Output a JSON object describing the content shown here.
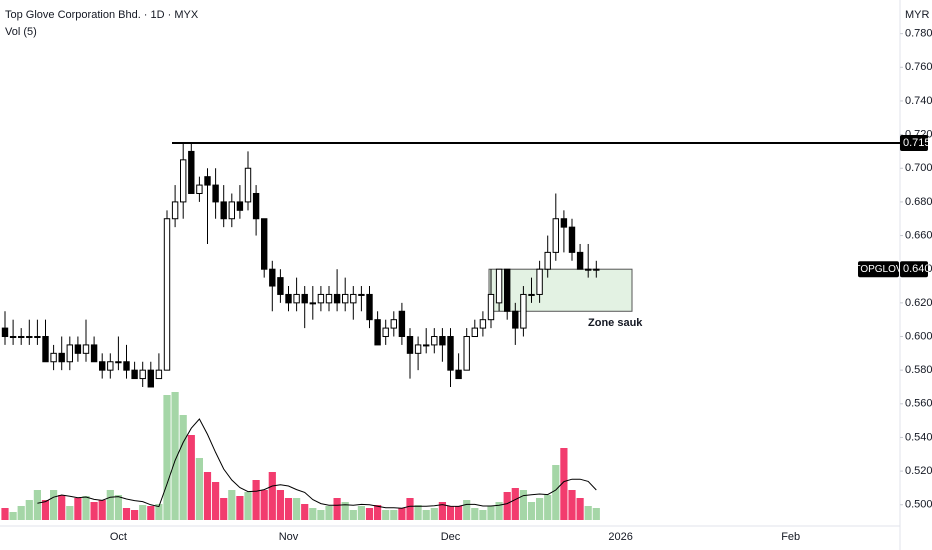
{
  "header": {
    "title": "Top Glove Corporation Bhd. · 1D · MYX",
    "indicator": "Vol (5)",
    "currency": "MYR"
  },
  "chart_data": {
    "type": "candlestick",
    "categories": [
      null,
      null,
      null,
      null,
      null,
      null,
      null,
      null,
      null,
      null,
      null,
      null,
      null,
      null,
      "Oct",
      null,
      null,
      null,
      null,
      null,
      null,
      null,
      null,
      null,
      null,
      null,
      null,
      null,
      null,
      null,
      null,
      null,
      null,
      null,
      null,
      "Nov",
      null,
      null,
      null,
      null,
      null,
      null,
      null,
      null,
      null,
      null,
      null,
      null,
      null,
      null,
      null,
      null,
      null,
      null,
      null,
      "Dec",
      null,
      null,
      null,
      null,
      null,
      null,
      null,
      null,
      null,
      null,
      null,
      null,
      null,
      null,
      null,
      null,
      null,
      null,
      null,
      null,
      "2026",
      null,
      null,
      null,
      null,
      null,
      null,
      null,
      null,
      null,
      null,
      null,
      null,
      null,
      null,
      null,
      null,
      null,
      null,
      null,
      null,
      "Feb",
      null,
      null,
      null,
      null,
      null,
      null,
      null,
      null,
      null,
      null,
      null,
      null,
      null
    ],
    "open": [
      0.605,
      0.6,
      0.6,
      0.6,
      0.6,
      0.6,
      0.585,
      0.59,
      0.585,
      0.595,
      0.59,
      0.595,
      0.585,
      0.58,
      0.585,
      0.585,
      0.58,
      0.575,
      0.58,
      0.575,
      0.58,
      0.67,
      0.68,
      0.71,
      0.685,
      0.695,
      0.69,
      0.68,
      0.67,
      0.68,
      0.68,
      0.685,
      0.67,
      0.64,
      0.635,
      0.625,
      0.62,
      0.625,
      0.62,
      0.62,
      0.62,
      0.625,
      0.62,
      0.62,
      0.625,
      0.625,
      0.61,
      0.6,
      0.605,
      0.615,
      0.6,
      0.59,
      0.595,
      0.595,
      0.6,
      0.6,
      0.58,
      0.58,
      0.6,
      0.605,
      0.61,
      0.62,
      0.64,
      0.615,
      0.605,
      0.625,
      0.625,
      0.64,
      0.65,
      0.67,
      0.665,
      0.65,
      0.64,
      0.64,
      null,
      null,
      null,
      null,
      null,
      null,
      null,
      null,
      null,
      null,
      null,
      null,
      null,
      null,
      null,
      null,
      null,
      null,
      null,
      null,
      null,
      null,
      null,
      null,
      null,
      null,
      null,
      null,
      null,
      null,
      null,
      null,
      null,
      null,
      null,
      null,
      null
    ],
    "high": [
      0.615,
      0.61,
      0.605,
      0.61,
      0.61,
      0.61,
      0.595,
      0.6,
      0.6,
      0.6,
      0.61,
      0.6,
      0.59,
      0.59,
      0.6,
      0.595,
      0.585,
      0.585,
      0.585,
      0.59,
      0.675,
      0.69,
      0.715,
      0.715,
      0.695,
      0.7,
      0.7,
      0.69,
      0.685,
      0.69,
      0.71,
      0.69,
      0.67,
      0.645,
      0.64,
      0.63,
      0.635,
      0.63,
      0.63,
      0.63,
      0.63,
      0.64,
      0.635,
      0.63,
      0.63,
      0.63,
      0.615,
      0.61,
      0.615,
      0.62,
      0.605,
      0.6,
      0.605,
      0.605,
      0.605,
      0.605,
      0.59,
      0.605,
      0.61,
      0.615,
      0.64,
      0.64,
      0.64,
      0.62,
      0.63,
      0.635,
      0.645,
      0.66,
      0.685,
      0.675,
      0.67,
      0.655,
      0.655,
      0.645,
      null,
      null,
      null,
      null,
      null,
      null,
      null,
      null,
      null,
      null,
      null,
      null,
      null,
      null,
      null,
      null,
      null,
      null,
      null,
      null,
      null,
      null,
      null,
      null,
      null,
      null,
      null,
      null,
      null,
      null,
      null,
      null,
      null,
      null,
      null,
      null,
      null
    ],
    "low": [
      0.595,
      0.595,
      0.595,
      0.595,
      0.595,
      0.585,
      0.58,
      0.58,
      0.58,
      0.585,
      0.585,
      0.585,
      0.575,
      0.575,
      0.58,
      0.575,
      0.575,
      0.57,
      0.57,
      0.575,
      0.58,
      0.665,
      0.67,
      0.685,
      0.68,
      0.655,
      0.67,
      0.665,
      0.665,
      0.67,
      0.675,
      0.66,
      0.635,
      0.615,
      0.62,
      0.615,
      0.615,
      0.605,
      0.61,
      0.615,
      0.615,
      0.615,
      0.615,
      0.61,
      0.615,
      0.605,
      0.595,
      0.595,
      0.6,
      0.595,
      0.575,
      0.58,
      0.59,
      0.59,
      0.585,
      0.57,
      0.575,
      0.58,
      0.6,
      0.6,
      0.605,
      0.615,
      0.61,
      0.595,
      0.6,
      0.62,
      0.62,
      0.635,
      0.645,
      0.65,
      0.645,
      0.64,
      0.635,
      0.635,
      null,
      null,
      null,
      null,
      null,
      null,
      null,
      null,
      null,
      null,
      null,
      null,
      null,
      null,
      null,
      null,
      null,
      null,
      null,
      null,
      null,
      null,
      null,
      null,
      null,
      null,
      null,
      null,
      null,
      null,
      null,
      null,
      null,
      null,
      null,
      null,
      null
    ],
    "close": [
      0.6,
      0.6,
      0.6,
      0.6,
      0.6,
      0.585,
      0.59,
      0.585,
      0.595,
      0.59,
      0.595,
      0.585,
      0.58,
      0.585,
      0.585,
      0.58,
      0.575,
      0.58,
      0.57,
      0.58,
      0.67,
      0.68,
      0.705,
      0.685,
      0.69,
      0.69,
      0.68,
      0.67,
      0.68,
      0.675,
      0.7,
      0.67,
      0.64,
      0.63,
      0.625,
      0.62,
      0.625,
      0.62,
      0.62,
      0.625,
      0.625,
      0.62,
      0.625,
      0.625,
      0.625,
      0.61,
      0.595,
      0.605,
      0.61,
      0.6,
      0.59,
      0.595,
      0.595,
      0.6,
      0.595,
      0.58,
      0.575,
      0.6,
      0.605,
      0.61,
      0.625,
      0.64,
      0.615,
      0.605,
      0.625,
      0.625,
      0.64,
      0.65,
      0.67,
      0.665,
      0.65,
      0.64,
      0.64,
      0.64,
      null,
      null,
      null,
      null,
      null,
      null,
      null,
      null,
      null,
      null,
      null,
      null,
      null,
      null,
      null,
      null,
      null,
      null,
      null,
      null,
      null,
      null,
      null,
      null,
      null,
      null,
      null,
      null,
      null,
      null,
      null,
      null,
      null,
      null,
      null,
      null,
      null
    ],
    "volume": [
      12,
      8,
      14,
      20,
      30,
      20,
      30,
      25,
      14,
      22,
      24,
      18,
      20,
      30,
      25,
      12,
      10,
      15,
      14,
      16,
      125,
      128,
      105,
      85,
      62,
      48,
      38,
      22,
      30,
      24,
      28,
      40,
      30,
      48,
      30,
      22,
      22,
      16,
      12,
      10,
      14,
      22,
      18,
      10,
      14,
      12,
      15,
      10,
      10,
      12,
      22,
      15,
      10,
      12,
      18,
      14,
      14,
      20,
      12,
      10,
      14,
      18,
      28,
      32,
      30,
      18,
      22,
      25,
      55,
      72,
      30,
      22,
      14,
      12,
      null,
      null,
      null,
      null,
      null,
      null,
      null,
      null,
      null,
      null,
      null,
      null,
      null,
      null,
      null,
      null,
      null,
      null,
      null,
      null,
      null,
      null,
      null,
      null,
      null,
      null,
      null,
      null,
      null,
      null,
      null,
      null,
      null,
      null,
      null,
      null,
      null
    ],
    "volume_ma": [
      null,
      null,
      null,
      null,
      16.8,
      18.4,
      22.8,
      25,
      23.8,
      22.2,
      23,
      20.6,
      19.6,
      22.8,
      23.4,
      21,
      19.4,
      18.4,
      15.2,
      13.4,
      36,
      59.6,
      77.6,
      91.8,
      101,
      85.6,
      67.6,
      51,
      40,
      32.4,
      28.4,
      28.8,
      30.4,
      34,
      35.2,
      34,
      30.4,
      27.6,
      20.4,
      16.4,
      14.8,
      14.8,
      15.2,
      14.8,
      15.6,
      15.2,
      13.8,
      12.2,
      12.2,
      11.8,
      13.8,
      13.8,
      13.8,
      14.2,
      15.4,
      13.8,
      13.6,
      15.6,
      15.6,
      14,
      14,
      14.8,
      16.4,
      20.4,
      24.4,
      25.2,
      26,
      25.4,
      30,
      38.4,
      40.8,
      40.8,
      38.6,
      30,
      null,
      null,
      null,
      null,
      null,
      null,
      null,
      null,
      null,
      null,
      null,
      null,
      null,
      null,
      null,
      null,
      null,
      null,
      null,
      null,
      null,
      null,
      null,
      null,
      null,
      null,
      null,
      null,
      null,
      null,
      null,
      null,
      null,
      null,
      null,
      null,
      null
    ],
    "up_color": "#ffffff",
    "down_color": "#000000",
    "wick_color": "#000000",
    "volume_up_color": "#a5d6a7",
    "volume_down_color": "#f23c6e",
    "volume_ma_color": "#000000",
    "ylim": [
      0.485,
      0.8
    ],
    "yticks": [
      {
        "value": 0.5,
        "label": "0.500"
      },
      {
        "value": 0.52,
        "label": "0.520"
      },
      {
        "value": 0.54,
        "label": "0.540"
      },
      {
        "value": 0.56,
        "label": "0.560"
      },
      {
        "value": 0.58,
        "label": "0.580"
      },
      {
        "value": 0.6,
        "label": "0.600"
      },
      {
        "value": 0.62,
        "label": "0.620"
      },
      {
        "value": 0.64,
        "label": "0.640"
      },
      {
        "value": 0.66,
        "label": "0.660"
      },
      {
        "value": 0.68,
        "label": "0.680"
      },
      {
        "value": 0.7,
        "label": "0.700"
      },
      {
        "value": 0.72,
        "label": "0.720"
      },
      {
        "value": 0.74,
        "label": "0.740"
      },
      {
        "value": 0.76,
        "label": "0.760"
      },
      {
        "value": 0.78,
        "label": "0.780"
      }
    ],
    "grid": false,
    "resistance": {
      "value": 0.715,
      "label": "0.715"
    },
    "last_price": {
      "name": "TOPGLOV",
      "value": 0.64,
      "label": "0.640"
    },
    "zone": {
      "label": "Zone sauk",
      "top": 0.64,
      "bottom": 0.615
    }
  }
}
